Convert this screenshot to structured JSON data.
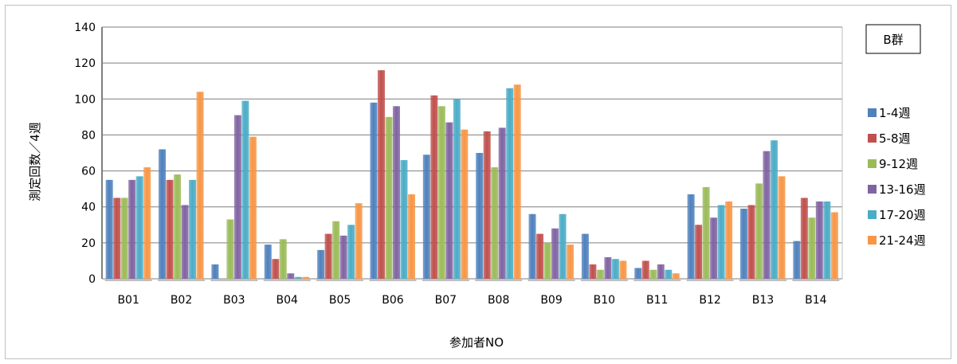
{
  "chart_data": {
    "type": "bar",
    "title": "",
    "xlabel": "参加者NO",
    "ylabel": "測定回数／4週",
    "ylim": [
      0,
      140
    ],
    "yticks": [
      0,
      20,
      40,
      60,
      80,
      100,
      120,
      140
    ],
    "grid": true,
    "legend_position": "right",
    "group_label": "B群",
    "categories": [
      "B01",
      "B02",
      "B03",
      "B04",
      "B05",
      "B06",
      "B07",
      "B08",
      "B09",
      "B10",
      "B11",
      "B12",
      "B13",
      "B14"
    ],
    "series": [
      {
        "name": "1-4週",
        "color": "#4f81bd",
        "values": [
          55,
          72,
          8,
          19,
          16,
          98,
          69,
          70,
          36,
          25,
          6,
          47,
          39,
          21
        ]
      },
      {
        "name": "5-8週",
        "color": "#c0504d",
        "values": [
          45,
          55,
          0,
          11,
          25,
          116,
          102,
          82,
          25,
          8,
          10,
          30,
          41,
          45
        ]
      },
      {
        "name": "9-12週",
        "color": "#9bbb59",
        "values": [
          45,
          58,
          33,
          22,
          32,
          90,
          96,
          62,
          20,
          5,
          5,
          51,
          53,
          34
        ]
      },
      {
        "name": "13-16週",
        "color": "#8064a2",
        "values": [
          55,
          41,
          91,
          3,
          24,
          96,
          87,
          84,
          28,
          12,
          8,
          34,
          71,
          43
        ]
      },
      {
        "name": "17-20週",
        "color": "#4bacc6",
        "values": [
          57,
          55,
          99,
          1,
          30,
          66,
          100,
          106,
          36,
          11,
          5,
          41,
          77,
          43
        ]
      },
      {
        "name": "21-24週",
        "color": "#f79646",
        "values": [
          62,
          104,
          79,
          1,
          42,
          47,
          83,
          108,
          19,
          10,
          3,
          43,
          57,
          37
        ]
      }
    ]
  }
}
